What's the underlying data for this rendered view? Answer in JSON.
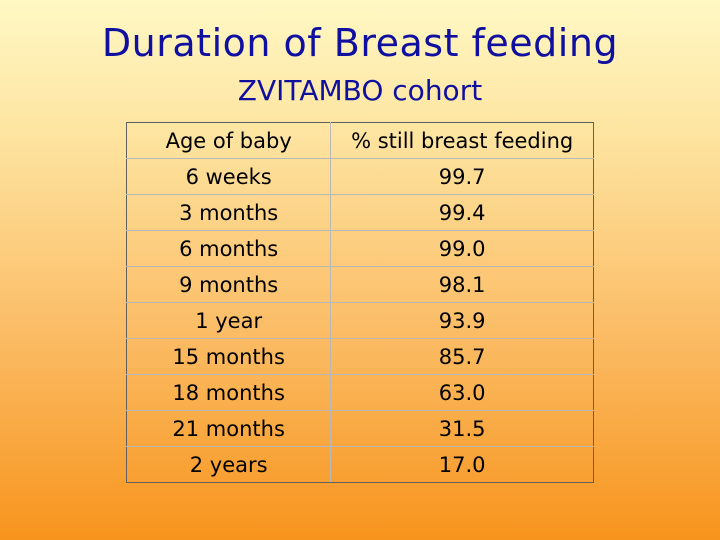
{
  "slide": {
    "title": "Duration of Breast feeding",
    "subtitle": "ZVITAMBO cohort"
  },
  "table": {
    "headers": [
      "Age of baby",
      "% still breast feeding"
    ],
    "rows": [
      [
        "6 weeks",
        "99.7"
      ],
      [
        "3 months",
        "99.4"
      ],
      [
        "6 months",
        "99.0"
      ],
      [
        "9 months",
        "98.1"
      ],
      [
        "1 year",
        "93.9"
      ],
      [
        "15 months",
        "85.7"
      ],
      [
        "18 months",
        "63.0"
      ],
      [
        "21 months",
        "31.5"
      ],
      [
        "2 years",
        "17.0"
      ]
    ]
  },
  "colors": {
    "title": "#1010A0",
    "background_top": "#FFF8C4",
    "background_bottom": "#F7941D"
  }
}
